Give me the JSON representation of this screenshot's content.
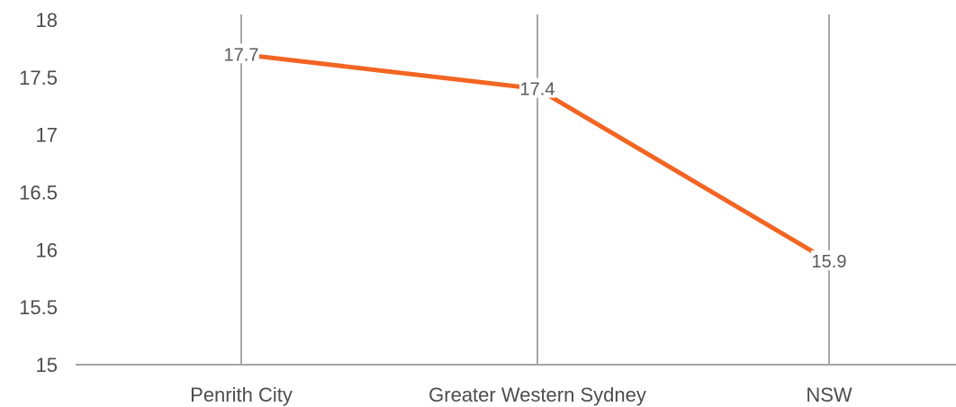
{
  "chart_data": {
    "type": "line",
    "categories": [
      "Penrith City",
      "Greater Western Sydney",
      "NSW"
    ],
    "values": [
      17.7,
      17.4,
      15.9
    ],
    "data_labels": [
      "17.7",
      "17.4",
      "15.9"
    ],
    "ylim": [
      15,
      18
    ],
    "yticks": [
      15,
      15.5,
      16,
      16.5,
      17,
      17.5,
      18
    ],
    "ytick_labels": [
      "15",
      "15.5",
      "16",
      "16.5",
      "17",
      "17.5",
      "18"
    ],
    "grid": "vertical lines at categories",
    "legend": "none",
    "colors": {
      "line": "#f26522",
      "gridline": "#a6a6a6",
      "axis": "#a6a6a6",
      "text": "#4d4d4d",
      "label": "#595959"
    }
  }
}
